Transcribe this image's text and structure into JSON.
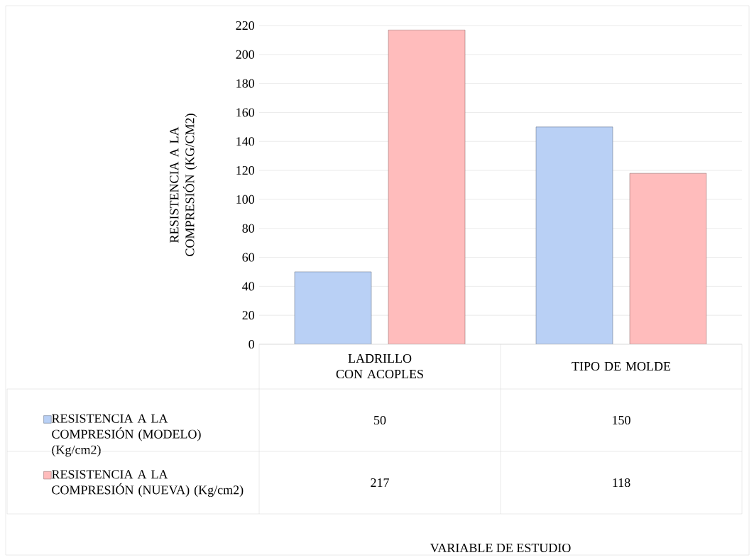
{
  "chart_data": {
    "type": "bar",
    "annotations": [
      "VARIABLE DE ESTUDIO"
    ],
    "ylabel": "RESISTENCIA A LA COMPRESIÓN (KG/CM2)",
    "categories": [
      "LADRILLO CON ACOPLES",
      "TIPO DE  MOLDE"
    ],
    "series": [
      {
        "name": "RESISTENCIA A LA COMPRESIÓN (MODELO) (Kg/cm2)",
        "color": "#b9d0f5",
        "values": [
          50,
          150
        ]
      },
      {
        "name": "RESISTENCIA A LA COMPRESIÓN (NUEVA) (Kg/cm2)",
        "color": "#ffbcbc",
        "values": [
          217,
          118
        ]
      }
    ],
    "ylim": [
      0,
      220
    ],
    "yticks": [
      0,
      20,
      40,
      60,
      80,
      100,
      120,
      140,
      160,
      180,
      200,
      220
    ],
    "grid": "y",
    "legend": "bottom",
    "data_labels": true
  }
}
